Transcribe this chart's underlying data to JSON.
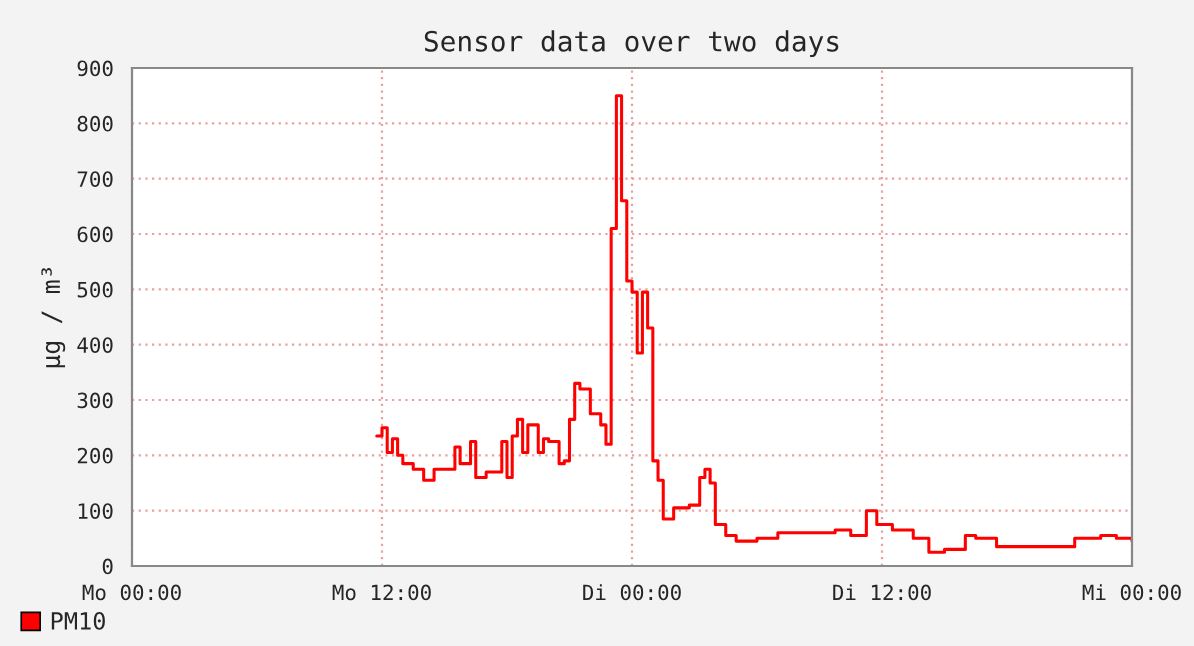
{
  "chart_data": {
    "type": "step",
    "title": "Sensor data over two days",
    "ylabel": "µg / m³",
    "categories": [
      "Mo 00:00",
      null,
      null,
      null,
      null,
      null,
      null,
      null,
      null,
      null,
      null,
      null,
      null,
      null,
      null,
      null,
      null,
      null,
      null,
      null,
      null,
      null,
      null,
      null,
      null,
      null,
      null,
      null,
      null,
      null,
      null,
      null,
      null,
      null,
      null,
      null,
      null,
      null,
      null,
      null,
      null,
      null,
      null,
      null,
      null,
      null,
      null,
      null,
      "Mo 12:00",
      null,
      null,
      null,
      null,
      null,
      null,
      null,
      null,
      null,
      null,
      null,
      null,
      null,
      null,
      null,
      null,
      null,
      null,
      null,
      null,
      null,
      null,
      null,
      null,
      null,
      null,
      null,
      null,
      null,
      null,
      null,
      null,
      null,
      null,
      null,
      null,
      null,
      null,
      null,
      null,
      null,
      null,
      null,
      null,
      null,
      null,
      null,
      "Di 00:00",
      null,
      null,
      null,
      null,
      null,
      null,
      null,
      null,
      null,
      null,
      null,
      null,
      null,
      null,
      null,
      null,
      null,
      null,
      null,
      null,
      null,
      null,
      null,
      null,
      null,
      null,
      null,
      null,
      null,
      null,
      null,
      null,
      null,
      null,
      null,
      null,
      null,
      null,
      null,
      null,
      null,
      null,
      null,
      null,
      null,
      null,
      null,
      "Di 12:00",
      null,
      null,
      null,
      null,
      null,
      null,
      null,
      null,
      null,
      null,
      null,
      null,
      null,
      null,
      null,
      null,
      null,
      null,
      null,
      null,
      null,
      null,
      null,
      null,
      null,
      null,
      null,
      null,
      null,
      null,
      null,
      null,
      null,
      null,
      null,
      null,
      null,
      null,
      null,
      null,
      null,
      null,
      null,
      null,
      null,
      null,
      null,
      "Mi 00:00"
    ],
    "ylim": [
      0,
      900
    ],
    "yticks": [
      0,
      100,
      200,
      300,
      400,
      500,
      600,
      700,
      800,
      900
    ],
    "grid": true,
    "legend": "bottom left",
    "series": [
      {
        "name": "PM10",
        "color": "#ff0000",
        "values": [
          null,
          null,
          null,
          null,
          null,
          null,
          null,
          null,
          null,
          null,
          null,
          null,
          null,
          null,
          null,
          null,
          null,
          null,
          null,
          null,
          null,
          null,
          null,
          null,
          null,
          null,
          null,
          null,
          null,
          null,
          null,
          null,
          null,
          null,
          null,
          null,
          null,
          null,
          null,
          null,
          null,
          null,
          null,
          null,
          null,
          null,
          null,
          235,
          250,
          205,
          230,
          200,
          185,
          185,
          175,
          175,
          155,
          155,
          175,
          175,
          175,
          175,
          215,
          185,
          185,
          225,
          160,
          160,
          170,
          170,
          170,
          225,
          160,
          235,
          265,
          205,
          255,
          255,
          205,
          230,
          225,
          225,
          185,
          190,
          265,
          330,
          320,
          320,
          275,
          275,
          255,
          220,
          610,
          850,
          660,
          515,
          495,
          385,
          495,
          430,
          190,
          155,
          85,
          85,
          105,
          105,
          105,
          110,
          110,
          160,
          175,
          150,
          75,
          75,
          55,
          55,
          45,
          45,
          45,
          45,
          50,
          50,
          50,
          50,
          60,
          60,
          60,
          60,
          60,
          60,
          60,
          60,
          60,
          60,
          60,
          65,
          65,
          65,
          55,
          55,
          55,
          100,
          100,
          75,
          75,
          75,
          65,
          65,
          65,
          65,
          50,
          50,
          50,
          25,
          25,
          25,
          30,
          30,
          30,
          30,
          55,
          55,
          50,
          50,
          50,
          50,
          35,
          35,
          35,
          35,
          35,
          35,
          35,
          35,
          35,
          35,
          35,
          35,
          35,
          35,
          35,
          50,
          50,
          50,
          50,
          50,
          55,
          55,
          55,
          50,
          50,
          50,
          45
        ]
      }
    ]
  }
}
